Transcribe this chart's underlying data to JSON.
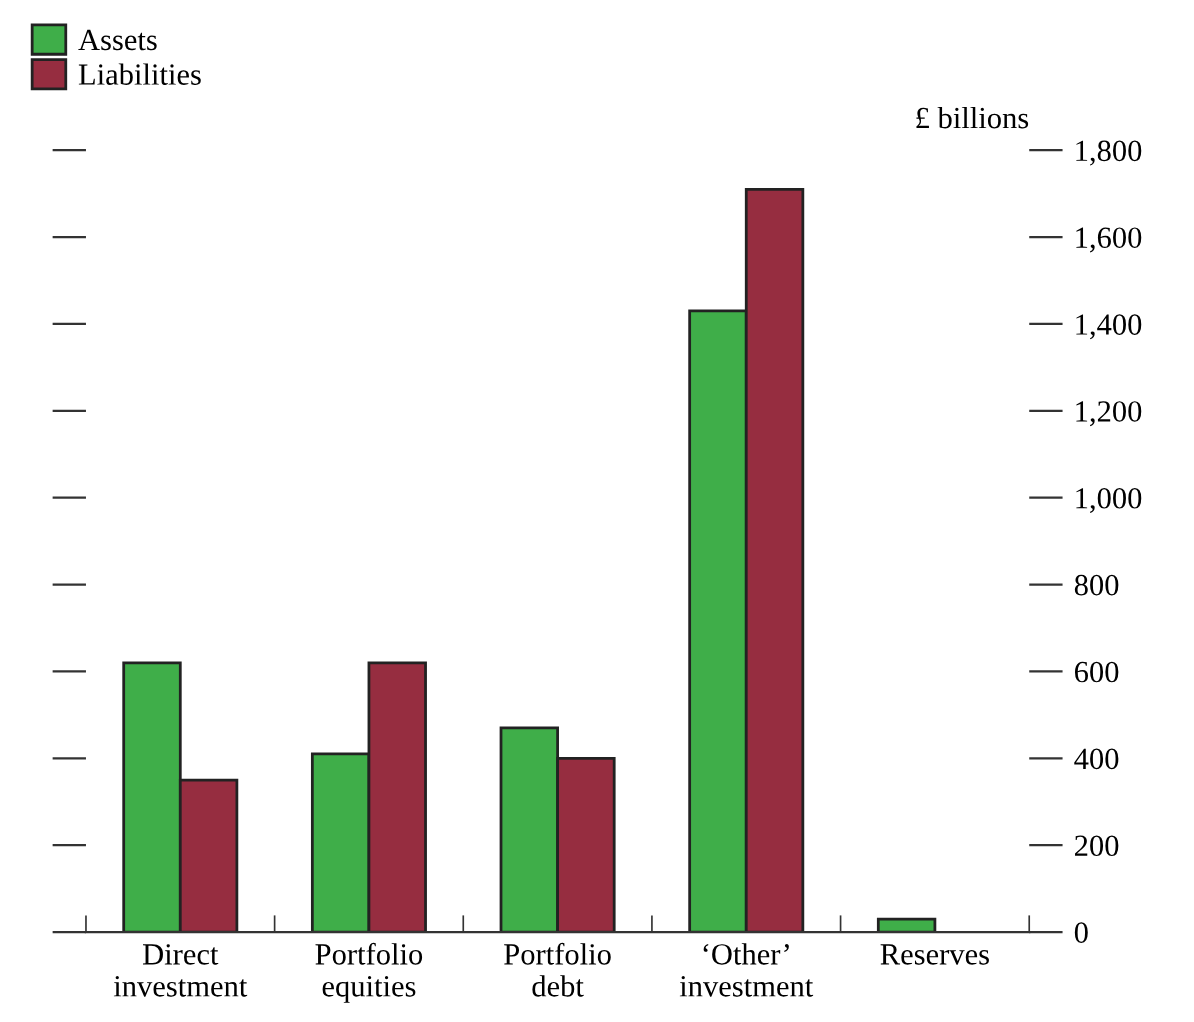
{
  "chart_data": {
    "type": "bar",
    "ylabel": "£ billions",
    "categories": [
      "Direct\ninvestment",
      "Portfolio\nequities",
      "Portfolio\ndebt",
      "‘Other’\ninvestment",
      "Reserves"
    ],
    "series": [
      {
        "name": "Assets",
        "color": "#3fae49",
        "values": [
          620,
          410,
          470,
          1430,
          30
        ]
      },
      {
        "name": "Liabilities",
        "color": "#962d40",
        "values": [
          350,
          620,
          400,
          1710,
          null
        ]
      }
    ],
    "ylim": [
      0,
      1800
    ],
    "yticks": [
      0,
      200,
      400,
      600,
      800,
      {
        "value": 1000,
        "label": "1,000"
      },
      {
        "value": 1200,
        "label": "1,200"
      },
      {
        "value": 1400,
        "label": "1,400"
      },
      {
        "value": 1600,
        "label": "1,600"
      },
      {
        "value": 1800,
        "label": "1,800"
      }
    ],
    "legend": "top left",
    "grid": false
  }
}
